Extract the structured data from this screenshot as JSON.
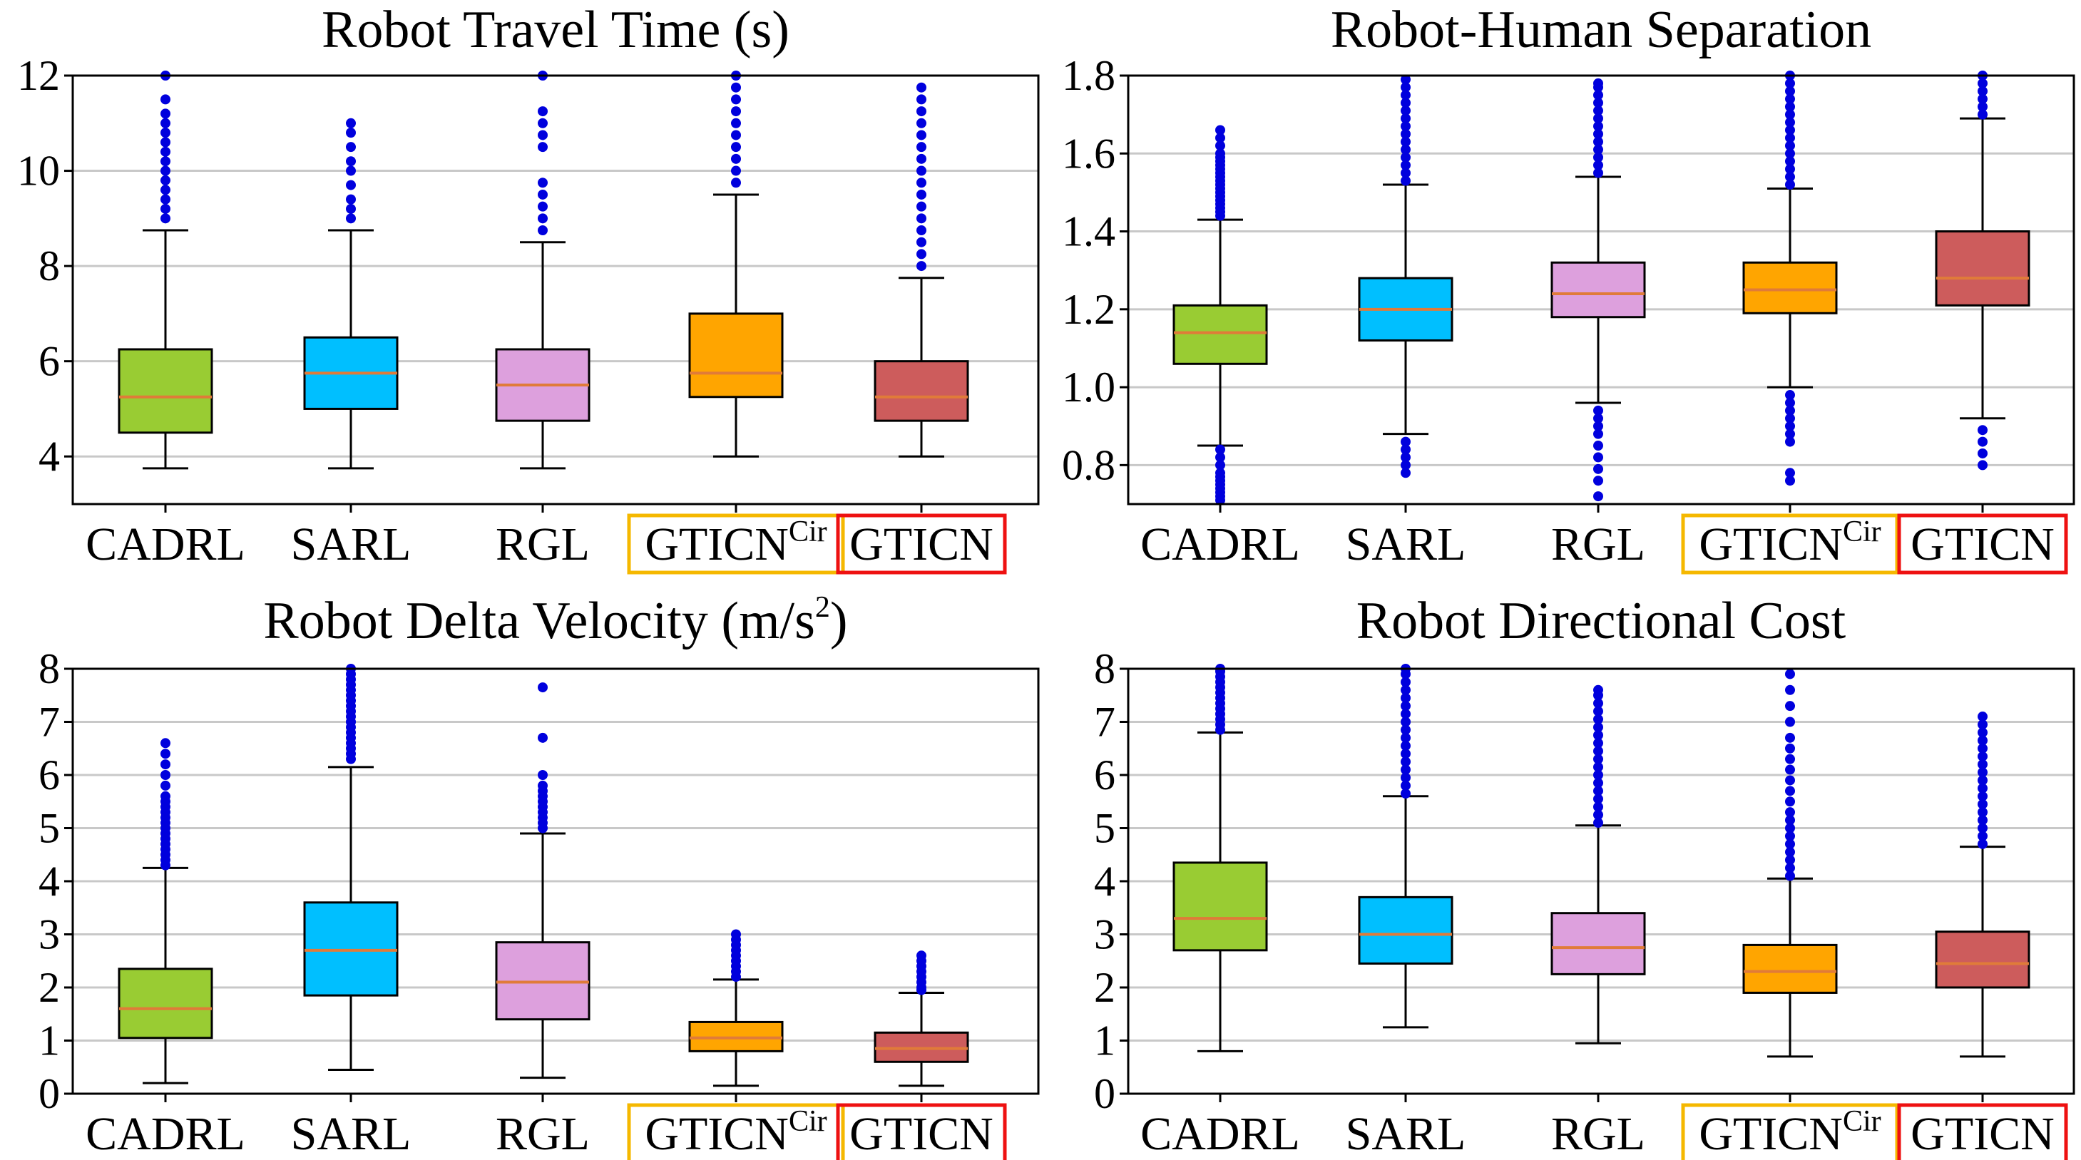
{
  "chart_data": [
    {
      "type": "box",
      "title": "Robot Travel Time (s)",
      "ylim": [
        3,
        12
      ],
      "yticks": [
        "4",
        "6",
        "8",
        "10",
        "12"
      ],
      "grid": "horizontal",
      "categories": [
        {
          "name": "CADRL",
          "sup": ""
        },
        {
          "name": "SARL",
          "sup": ""
        },
        {
          "name": "RGL",
          "sup": ""
        },
        {
          "name": "GTICN",
          "sup": "Cir"
        },
        {
          "name": "GTICN",
          "sup": ""
        }
      ],
      "colors": [
        "#99cc33",
        "#00bfff",
        "#dda0dd",
        "#ffa500",
        "#cd5c5c"
      ],
      "highlight": [
        null,
        null,
        null,
        "#f5b800",
        "#ee1111"
      ],
      "boxes": [
        {
          "whislo": 3.75,
          "q1": 4.5,
          "med": 5.25,
          "q3": 6.25,
          "whishi": 8.75,
          "fliers": [
            9.0,
            9.2,
            9.4,
            9.6,
            9.8,
            10.0,
            10.2,
            10.4,
            10.6,
            10.8,
            11.0,
            11.2,
            11.5,
            12.0
          ]
        },
        {
          "whislo": 3.75,
          "q1": 5.0,
          "med": 5.75,
          "q3": 6.5,
          "whishi": 8.75,
          "fliers": [
            9.0,
            9.2,
            9.4,
            9.7,
            10.0,
            10.2,
            10.5,
            10.8,
            11.0
          ]
        },
        {
          "whislo": 3.75,
          "q1": 4.75,
          "med": 5.5,
          "q3": 6.25,
          "whishi": 8.5,
          "fliers": [
            8.75,
            9.0,
            9.25,
            9.5,
            9.75,
            10.5,
            10.75,
            11.0,
            11.25,
            12.0
          ]
        },
        {
          "whislo": 4.0,
          "q1": 5.25,
          "med": 5.75,
          "q3": 7.0,
          "whishi": 9.5,
          "fliers": [
            9.75,
            10.0,
            10.25,
            10.5,
            10.75,
            11.0,
            11.25,
            11.5,
            11.75,
            12.0
          ]
        },
        {
          "whislo": 4.0,
          "q1": 4.75,
          "med": 5.25,
          "q3": 6.0,
          "whishi": 7.75,
          "fliers": [
            8.0,
            8.25,
            8.5,
            8.75,
            9.0,
            9.25,
            9.5,
            9.75,
            10.0,
            10.25,
            10.5,
            10.75,
            11.0,
            11.25,
            11.5,
            11.75
          ]
        }
      ]
    },
    {
      "type": "box",
      "title": "Robot-Human Separation",
      "ylim": [
        0.7,
        1.8
      ],
      "yticks": [
        "0.8",
        "1.0",
        "1.2",
        "1.4",
        "1.6",
        "1.8"
      ],
      "grid": "horizontal",
      "categories": [
        {
          "name": "CADRL",
          "sup": ""
        },
        {
          "name": "SARL",
          "sup": ""
        },
        {
          "name": "RGL",
          "sup": ""
        },
        {
          "name": "GTICN",
          "sup": "Cir"
        },
        {
          "name": "GTICN",
          "sup": ""
        }
      ],
      "colors": [
        "#99cc33",
        "#00bfff",
        "#dda0dd",
        "#ffa500",
        "#cd5c5c"
      ],
      "highlight": [
        null,
        null,
        null,
        "#f5b800",
        "#ee1111"
      ],
      "boxes": [
        {
          "whislo": 0.85,
          "q1": 1.06,
          "med": 1.14,
          "q3": 1.21,
          "whishi": 1.43,
          "fliers": [
            0.71,
            0.72,
            0.73,
            0.74,
            0.75,
            0.76,
            0.77,
            0.78,
            0.8,
            0.82,
            0.84,
            1.44,
            1.45,
            1.46,
            1.47,
            1.48,
            1.49,
            1.5,
            1.51,
            1.52,
            1.53,
            1.54,
            1.55,
            1.56,
            1.57,
            1.58,
            1.59,
            1.6,
            1.62,
            1.64,
            1.66
          ]
        },
        {
          "whislo": 0.88,
          "q1": 1.12,
          "med": 1.2,
          "q3": 1.28,
          "whishi": 1.52,
          "fliers": [
            0.78,
            0.8,
            0.82,
            0.84,
            0.86,
            1.53,
            1.55,
            1.57,
            1.59,
            1.61,
            1.63,
            1.65,
            1.67,
            1.69,
            1.71,
            1.73,
            1.75,
            1.77,
            1.79
          ]
        },
        {
          "whislo": 0.96,
          "q1": 1.18,
          "med": 1.24,
          "q3": 1.32,
          "whishi": 1.54,
          "fliers": [
            0.72,
            0.76,
            0.79,
            0.82,
            0.85,
            0.88,
            0.9,
            0.92,
            0.94,
            1.55,
            1.57,
            1.59,
            1.61,
            1.63,
            1.65,
            1.67,
            1.69,
            1.71,
            1.73,
            1.75,
            1.77,
            1.78
          ]
        },
        {
          "whislo": 1.0,
          "q1": 1.19,
          "med": 1.25,
          "q3": 1.32,
          "whishi": 1.51,
          "fliers": [
            0.76,
            0.78,
            0.86,
            0.88,
            0.9,
            0.92,
            0.94,
            0.96,
            0.98,
            1.52,
            1.54,
            1.56,
            1.58,
            1.6,
            1.62,
            1.64,
            1.66,
            1.68,
            1.7,
            1.72,
            1.74,
            1.76,
            1.78,
            1.8
          ]
        },
        {
          "whislo": 0.92,
          "q1": 1.21,
          "med": 1.28,
          "q3": 1.4,
          "whishi": 1.69,
          "fliers": [
            0.8,
            0.83,
            0.86,
            0.89,
            1.7,
            1.72,
            1.74,
            1.76,
            1.78,
            1.8
          ]
        }
      ]
    },
    {
      "type": "box",
      "title": "Robot Delta Velocity (m/s",
      "title_sup": "2",
      "title_end": ")",
      "ylim": [
        0,
        8
      ],
      "yticks": [
        "0",
        "1",
        "2",
        "3",
        "4",
        "5",
        "6",
        "7",
        "8"
      ],
      "grid": "horizontal",
      "categories": [
        {
          "name": "CADRL",
          "sup": ""
        },
        {
          "name": "SARL",
          "sup": ""
        },
        {
          "name": "RGL",
          "sup": ""
        },
        {
          "name": "GTICN",
          "sup": "Cir"
        },
        {
          "name": "GTICN",
          "sup": ""
        }
      ],
      "colors": [
        "#99cc33",
        "#00bfff",
        "#dda0dd",
        "#ffa500",
        "#cd5c5c"
      ],
      "highlight": [
        null,
        null,
        null,
        "#f5b800",
        "#ee1111"
      ],
      "boxes": [
        {
          "whislo": 0.2,
          "q1": 1.05,
          "med": 1.6,
          "q3": 2.35,
          "whishi": 4.25,
          "fliers": [
            4.3,
            4.4,
            4.5,
            4.6,
            4.7,
            4.8,
            4.9,
            5.0,
            5.1,
            5.2,
            5.3,
            5.4,
            5.5,
            5.6,
            5.8,
            6.0,
            6.2,
            6.4,
            6.6
          ]
        },
        {
          "whislo": 0.45,
          "q1": 1.85,
          "med": 2.7,
          "q3": 3.6,
          "whishi": 6.15,
          "fliers": [
            6.3,
            6.4,
            6.5,
            6.6,
            6.7,
            6.8,
            6.9,
            7.0,
            7.1,
            7.2,
            7.3,
            7.4,
            7.5,
            7.6,
            7.7,
            7.8,
            7.9,
            8.0
          ]
        },
        {
          "whislo": 0.3,
          "q1": 1.4,
          "med": 2.1,
          "q3": 2.85,
          "whishi": 4.9,
          "fliers": [
            5.0,
            5.1,
            5.2,
            5.3,
            5.4,
            5.5,
            5.6,
            5.7,
            5.8,
            6.0,
            6.7,
            7.65
          ]
        },
        {
          "whislo": 0.15,
          "q1": 0.8,
          "med": 1.05,
          "q3": 1.35,
          "whishi": 2.15,
          "fliers": [
            2.2,
            2.3,
            2.4,
            2.5,
            2.6,
            2.7,
            2.8,
            2.9,
            3.0
          ]
        },
        {
          "whislo": 0.15,
          "q1": 0.6,
          "med": 0.85,
          "q3": 1.15,
          "whishi": 1.9,
          "fliers": [
            1.95,
            2.0,
            2.1,
            2.2,
            2.3,
            2.4,
            2.5,
            2.6
          ]
        }
      ]
    },
    {
      "type": "box",
      "title": "Robot Directional Cost",
      "ylim": [
        0,
        8
      ],
      "yticks": [
        "0",
        "1",
        "2",
        "3",
        "4",
        "5",
        "6",
        "7",
        "8"
      ],
      "grid": "horizontal",
      "categories": [
        {
          "name": "CADRL",
          "sup": ""
        },
        {
          "name": "SARL",
          "sup": ""
        },
        {
          "name": "RGL",
          "sup": ""
        },
        {
          "name": "GTICN",
          "sup": "Cir"
        },
        {
          "name": "GTICN",
          "sup": ""
        }
      ],
      "colors": [
        "#99cc33",
        "#00bfff",
        "#dda0dd",
        "#ffa500",
        "#cd5c5c"
      ],
      "highlight": [
        null,
        null,
        null,
        "#f5b800",
        "#ee1111"
      ],
      "boxes": [
        {
          "whislo": 0.8,
          "q1": 2.7,
          "med": 3.3,
          "q3": 4.35,
          "whishi": 6.8,
          "fliers": [
            6.85,
            6.95,
            7.05,
            7.15,
            7.25,
            7.35,
            7.45,
            7.55,
            7.65,
            7.75,
            7.85,
            7.95,
            8.0
          ]
        },
        {
          "whislo": 1.25,
          "q1": 2.45,
          "med": 3.0,
          "q3": 3.7,
          "whishi": 5.6,
          "fliers": [
            5.65,
            5.8,
            5.95,
            6.1,
            6.25,
            6.4,
            6.55,
            6.7,
            6.85,
            7.0,
            7.15,
            7.3,
            7.45,
            7.6,
            7.75,
            7.9,
            8.0
          ]
        },
        {
          "whislo": 0.95,
          "q1": 2.25,
          "med": 2.75,
          "q3": 3.4,
          "whishi": 5.05,
          "fliers": [
            5.1,
            5.25,
            5.4,
            5.55,
            5.7,
            5.85,
            6.0,
            6.15,
            6.3,
            6.45,
            6.6,
            6.75,
            6.9,
            7.05,
            7.2,
            7.35,
            7.5,
            7.6
          ]
        },
        {
          "whislo": 0.7,
          "q1": 1.9,
          "med": 2.3,
          "q3": 2.8,
          "whishi": 4.05,
          "fliers": [
            4.1,
            4.25,
            4.4,
            4.55,
            4.7,
            4.85,
            5.0,
            5.15,
            5.3,
            5.5,
            5.7,
            5.9,
            6.1,
            6.3,
            6.5,
            6.7,
            7.0,
            7.3,
            7.6,
            7.9
          ]
        },
        {
          "whislo": 0.7,
          "q1": 2.0,
          "med": 2.45,
          "q3": 3.05,
          "whishi": 4.65,
          "fliers": [
            4.7,
            4.85,
            5.0,
            5.15,
            5.3,
            5.45,
            5.6,
            5.75,
            5.9,
            6.05,
            6.2,
            6.35,
            6.5,
            6.65,
            6.8,
            6.95,
            7.1
          ]
        }
      ]
    }
  ]
}
